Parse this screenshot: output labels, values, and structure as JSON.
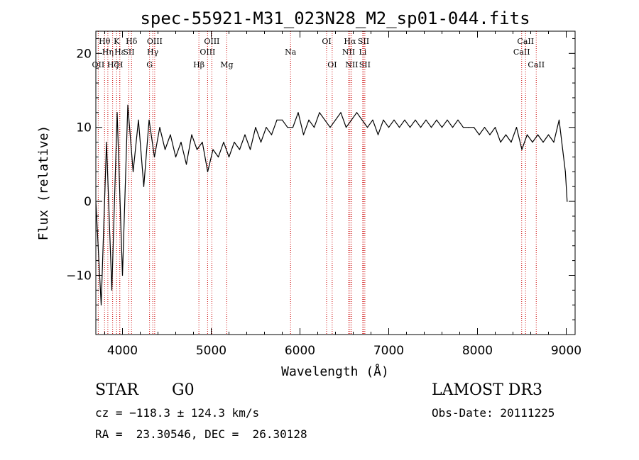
{
  "chart_data": {
    "type": "line",
    "title": "spec-55921-M31_023N28_M2_sp01-044.fits",
    "xlabel": "Wavelength (Å)",
    "ylabel": "Flux (relative)",
    "xlim": [
      3700,
      9100
    ],
    "ylim": [
      -18,
      23
    ],
    "x_ticks": [
      4000,
      5000,
      6000,
      7000,
      8000,
      9000
    ],
    "x_tick_labels": [
      "4000",
      "5000",
      "6000",
      "7000",
      "8000",
      "9000"
    ],
    "y_ticks": [
      -10,
      0,
      10,
      20
    ],
    "y_tick_labels": [
      "−10",
      "0",
      "10",
      "20"
    ],
    "grid": false,
    "series": [
      {
        "name": "flux",
        "color": "#000000",
        "x": [
          3700,
          3760,
          3820,
          3880,
          3940,
          4000,
          4060,
          4120,
          4180,
          4240,
          4300,
          4360,
          4420,
          4480,
          4540,
          4600,
          4660,
          4720,
          4780,
          4840,
          4900,
          4960,
          5020,
          5080,
          5140,
          5200,
          5260,
          5320,
          5380,
          5440,
          5500,
          5560,
          5620,
          5680,
          5740,
          5800,
          5860,
          5920,
          5980,
          6040,
          6100,
          6160,
          6220,
          6280,
          6340,
          6400,
          6460,
          6520,
          6580,
          6640,
          6700,
          6760,
          6820,
          6880,
          6940,
          7000,
          7060,
          7120,
          7180,
          7240,
          7300,
          7360,
          7420,
          7480,
          7540,
          7600,
          7660,
          7720,
          7780,
          7840,
          7900,
          7960,
          8020,
          8080,
          8140,
          8200,
          8260,
          8320,
          8380,
          8440,
          8500,
          8560,
          8620,
          8680,
          8740,
          8800,
          8860,
          8920,
          8960,
          8990,
          9010
        ],
        "values": [
          0,
          -14,
          8,
          -12,
          12,
          -10,
          13,
          4,
          11,
          2,
          11,
          6,
          10,
          7,
          9,
          6,
          8,
          5,
          9,
          7,
          8,
          4,
          7,
          6,
          8,
          6,
          8,
          7,
          9,
          7,
          10,
          8,
          10,
          9,
          11,
          11,
          10,
          10,
          12,
          9,
          11,
          10,
          12,
          11,
          10,
          11,
          12,
          10,
          11,
          12,
          11,
          10,
          11,
          9,
          11,
          10,
          11,
          10,
          11,
          10,
          11,
          10,
          11,
          10,
          11,
          10,
          11,
          10,
          11,
          10,
          10,
          10,
          9,
          10,
          9,
          10,
          8,
          9,
          8,
          10,
          7,
          9,
          8,
          9,
          8,
          9,
          8,
          11,
          7,
          4,
          0
        ]
      }
    ],
    "line_markers": [
      {
        "label": "OII",
        "x": 3727,
        "row": 3
      },
      {
        "label": "Hθ",
        "x": 3798,
        "row": 1
      },
      {
        "label": "Hη",
        "x": 3835,
        "row": 2
      },
      {
        "label": "Hζ",
        "x": 3889,
        "row": 3
      },
      {
        "label": "K",
        "x": 3934,
        "row": 1
      },
      {
        "label": "H",
        "x": 3969,
        "row": 3
      },
      {
        "label": "Hε",
        "x": 3970,
        "row": 2
      },
      {
        "label": "SII",
        "x": 4072,
        "row": 2
      },
      {
        "label": "Hδ",
        "x": 4102,
        "row": 1
      },
      {
        "label": "G",
        "x": 4305,
        "row": 3
      },
      {
        "label": "Hγ",
        "x": 4341,
        "row": 2
      },
      {
        "label": "OIII",
        "x": 4363,
        "row": 1
      },
      {
        "label": "Hβ",
        "x": 4861,
        "row": 3
      },
      {
        "label": "OIII",
        "x": 4959,
        "row": 2
      },
      {
        "label": "OIII",
        "x": 5007,
        "row": 1
      },
      {
        "label": "Mg",
        "x": 5175,
        "row": 3
      },
      {
        "label": "Na",
        "x": 5894,
        "row": 2
      },
      {
        "label": "OI",
        "x": 6300,
        "row": 1
      },
      {
        "label": "OI",
        "x": 6363,
        "row": 3
      },
      {
        "label": "NII",
        "x": 6548,
        "row": 2
      },
      {
        "label": "Hα",
        "x": 6563,
        "row": 1
      },
      {
        "label": "NII",
        "x": 6583,
        "row": 3
      },
      {
        "label": "Li",
        "x": 6707,
        "row": 2
      },
      {
        "label": "SII",
        "x": 6716,
        "row": 1
      },
      {
        "label": "SII",
        "x": 6731,
        "row": 3
      },
      {
        "label": "CaII",
        "x": 8498,
        "row": 2
      },
      {
        "label": "CaII",
        "x": 8542,
        "row": 1
      },
      {
        "label": "CaII",
        "x": 8662,
        "row": 3
      }
    ]
  },
  "info": {
    "class_label": "STAR",
    "subclass_label": "G0",
    "survey_label": "LAMOST DR3",
    "velocity_line": "cz = −118.3 ± 124.3 km/s",
    "obs_date_line": "Obs-Date: 20111225",
    "coords_line": "RA =  23.30546, DEC =  26.30128"
  }
}
